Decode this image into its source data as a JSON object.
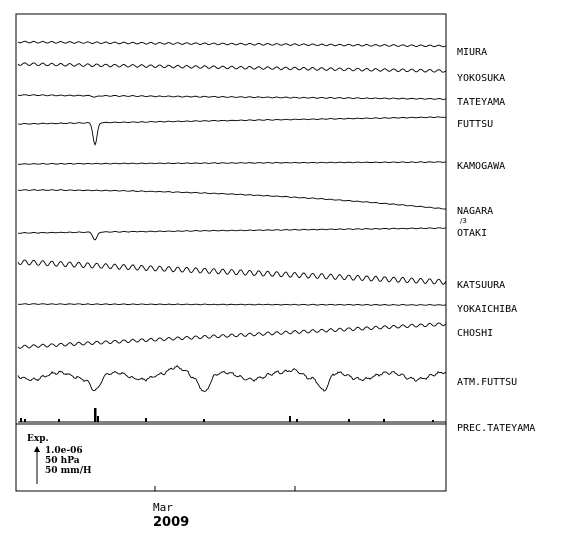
{
  "chart_data": {
    "type": "line",
    "title": "",
    "x_axis": {
      "tick_label": "Mar",
      "year_label": "2009"
    },
    "series": [
      {
        "name": "MIURA",
        "shape": "wavy",
        "amp": 0.8,
        "period": 9,
        "trend": 4,
        "spikes": []
      },
      {
        "name": "YOKOSUKA",
        "shape": "wavy",
        "amp": 1.3,
        "period": 9,
        "trend": 7,
        "spikes": []
      },
      {
        "name": "TATEYAMA",
        "shape": "flat",
        "amp": 0.4,
        "period": 9,
        "trend": 4,
        "spikes": [
          {
            "at": 0.18,
            "depth": 1.5,
            "width": 2
          }
        ]
      },
      {
        "name": "FUTTSU",
        "shape": "flat",
        "amp": 0.3,
        "period": 9,
        "trend": -7,
        "spikes": [
          {
            "at": 0.18,
            "depth": 22,
            "width": 2
          }
        ]
      },
      {
        "name": "KAMOGAWA",
        "shape": "flat",
        "amp": 0.3,
        "period": 9,
        "trend": -2,
        "spikes": []
      },
      {
        "name": "NAGARA",
        "sub": "/3",
        "shape": "curve",
        "amp": 0.3,
        "period": 9,
        "trend": 19,
        "spikes": []
      },
      {
        "name": "OTAKI",
        "shape": "flat",
        "amp": 0.3,
        "period": 9,
        "trend": -5,
        "spikes": [
          {
            "at": 0.18,
            "depth": 8,
            "width": 2
          }
        ]
      },
      {
        "name": "KATSUURA",
        "shape": "wavy",
        "amp": 2.5,
        "period": 9,
        "trend": 20,
        "spikes": []
      },
      {
        "name": "YOKAICHIBA",
        "shape": "flat",
        "amp": 0.3,
        "period": 9,
        "trend": 1,
        "spikes": []
      },
      {
        "name": "CHOSHI",
        "shape": "wavy",
        "amp": 1.5,
        "period": 9,
        "trend": -23,
        "spikes": []
      },
      {
        "name": "ATM.FUTTSU",
        "shape": "atm",
        "amp": 1.2,
        "period": 9,
        "trend": 0,
        "spikes": []
      },
      {
        "name": "PREC.TATEYAMA",
        "shape": "precip",
        "amp": 0,
        "period": 9,
        "trend": 0,
        "spikes": []
      }
    ],
    "scale_legend": {
      "title": "Exp.",
      "lines": [
        "1.0e-06",
        "50 hPa",
        "50 mm/H"
      ]
    }
  }
}
